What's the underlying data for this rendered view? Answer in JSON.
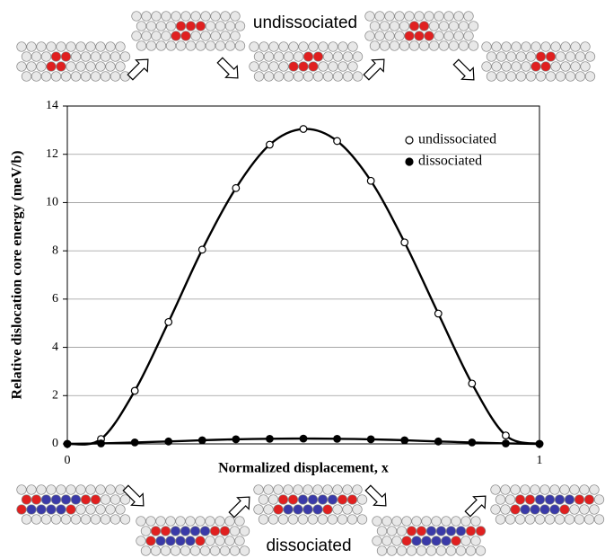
{
  "chart_data": {
    "type": "line",
    "y_label": "Relative dislocation core energy (meV/b)",
    "x_label": "Normalized displacement, x",
    "annotations": [
      "undissociated",
      "dissociated"
    ],
    "x": [
      0,
      0.0714,
      0.1429,
      0.2143,
      0.2857,
      0.3571,
      0.4286,
      0.5,
      0.5714,
      0.6429,
      0.7143,
      0.7857,
      0.8571,
      0.9286,
      1
    ],
    "series": [
      {
        "name": "undissociated",
        "color": "#000000",
        "marker": "open",
        "values": [
          0,
          0.2,
          2.2,
          5.05,
          8.05,
          10.6,
          12.4,
          13.05,
          12.55,
          10.9,
          8.35,
          5.4,
          2.5,
          0.35,
          0
        ]
      },
      {
        "name": "dissociated",
        "color": "#000000",
        "marker": "filled",
        "values": [
          0,
          0.02,
          0.06,
          0.1,
          0.15,
          0.19,
          0.21,
          0.22,
          0.21,
          0.19,
          0.15,
          0.1,
          0.06,
          0.02,
          0
        ]
      }
    ],
    "xlim": [
      0,
      1
    ],
    "xticks": [
      0,
      1
    ],
    "ylim": [
      0,
      14
    ],
    "yticks": [
      0,
      2,
      4,
      6,
      8,
      10,
      12,
      14
    ],
    "grid": true,
    "legend": "upper right"
  }
}
